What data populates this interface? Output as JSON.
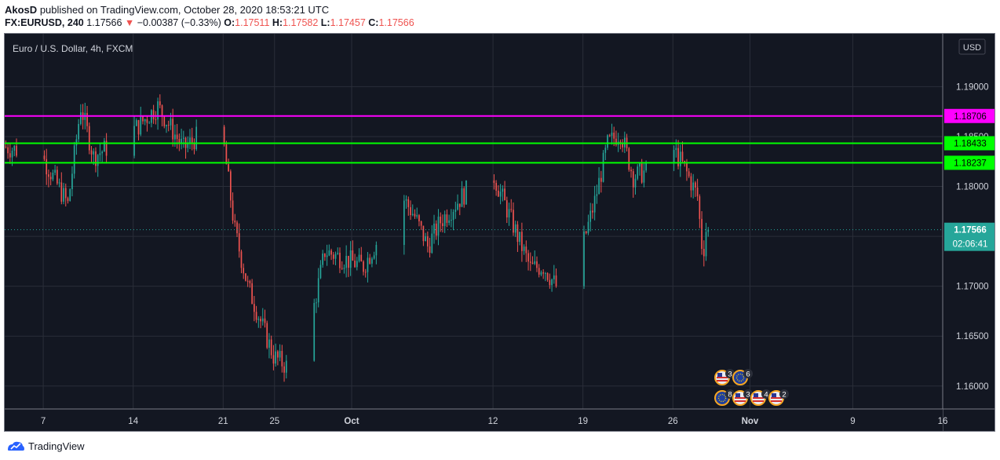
{
  "header": {
    "author": "AkosD",
    "published_text": "published on TradingView.com, October 28, 2020 18:53:21 UTC",
    "symbol": "FX:EURUSD, 240",
    "last": "1.17566",
    "change": "−0.00387 (−0.33%)",
    "o_label": "O:",
    "o_value": "1.17511",
    "h_label": "H:",
    "h_value": "1.17582",
    "l_label": "L:",
    "l_value": "1.17457",
    "c_label": "C:",
    "c_value": "1.17566"
  },
  "legend_title": "Euro / U.S. Dollar, 4h, FXCM",
  "currency_button": "USD",
  "footer_brand": "TradingView",
  "colors": {
    "background": "#131722",
    "up": "#26a69a",
    "down": "#ef5350",
    "magenta": "#ff00ff",
    "green": "#00ff00",
    "grid": "#2a2e39",
    "axis_text": "#d1d4dc"
  },
  "chart_data": {
    "type": "candlestick",
    "title": "Euro / U.S. Dollar, 4h, FXCM",
    "y_ticks": [
      "1.19000",
      "1.18500",
      "1.18000",
      "1.17500",
      "1.17000",
      "1.16500",
      "1.16000"
    ],
    "x_ticks": [
      "7",
      "14",
      "21",
      "25",
      "Oct",
      "12",
      "19",
      "26",
      "Nov",
      "9",
      "16"
    ],
    "ylim": [
      1.1577,
      1.1953
    ],
    "x_range": [
      "2020-09-04",
      "2020-11-16"
    ],
    "grid": true,
    "anchors": [
      {
        "date": "2020-09-04",
        "price": 1.184
      },
      {
        "date": "2020-09-07",
        "price": 1.183
      },
      {
        "date": "2020-09-09",
        "price": 1.1782
      },
      {
        "date": "2020-09-10",
        "price": 1.188
      },
      {
        "date": "2020-09-11",
        "price": 1.183
      },
      {
        "date": "2020-09-14",
        "price": 1.1855
      },
      {
        "date": "2020-09-16",
        "price": 1.188
      },
      {
        "date": "2020-09-18",
        "price": 1.1838
      },
      {
        "date": "2020-09-20",
        "price": 1.186
      },
      {
        "date": "2020-09-21",
        "price": 1.1855
      },
      {
        "date": "2020-09-22",
        "price": 1.1755
      },
      {
        "date": "2020-09-23",
        "price": 1.17
      },
      {
        "date": "2020-09-24",
        "price": 1.1665
      },
      {
        "date": "2020-09-25",
        "price": 1.163
      },
      {
        "date": "2020-09-26",
        "price": 1.162
      },
      {
        "date": "2020-09-28",
        "price": 1.167
      },
      {
        "date": "2020-09-29",
        "price": 1.1735
      },
      {
        "date": "2020-10-01",
        "price": 1.1725
      },
      {
        "date": "2020-10-02",
        "price": 1.172
      },
      {
        "date": "2020-10-05",
        "price": 1.179
      },
      {
        "date": "2020-10-06",
        "price": 1.177
      },
      {
        "date": "2020-10-07",
        "price": 1.174
      },
      {
        "date": "2020-10-08",
        "price": 1.1765
      },
      {
        "date": "2020-10-11",
        "price": 1.181
      },
      {
        "date": "2020-10-12",
        "price": 1.1815
      },
      {
        "date": "2020-10-14",
        "price": 1.175
      },
      {
        "date": "2020-10-15",
        "price": 1.1718
      },
      {
        "date": "2020-10-16",
        "price": 1.172
      },
      {
        "date": "2020-10-17",
        "price": 1.17
      },
      {
        "date": "2020-10-19",
        "price": 1.1738
      },
      {
        "date": "2020-10-20",
        "price": 1.1785
      },
      {
        "date": "2020-10-21",
        "price": 1.1842
      },
      {
        "date": "2020-10-22",
        "price": 1.1855
      },
      {
        "date": "2020-10-23",
        "price": 1.181
      },
      {
        "date": "2020-10-24",
        "price": 1.1815
      },
      {
        "date": "2020-10-26",
        "price": 1.184
      },
      {
        "date": "2020-10-27",
        "price": 1.1818
      },
      {
        "date": "2020-10-28",
        "price": 1.179
      },
      {
        "date": "2020-10-28T10:00",
        "price": 1.173
      },
      {
        "date": "2020-10-28T16:00",
        "price": 1.17566
      }
    ],
    "horizontal_lines": [
      {
        "price": 1.18706,
        "label": "1.18706",
        "color": "#ff00ff"
      },
      {
        "price": 1.18433,
        "label": "1.18433",
        "color": "#00ff00"
      },
      {
        "price": 1.18237,
        "label": "1.18237",
        "color": "#00ff00"
      }
    ],
    "last_price": {
      "price": 1.17566,
      "label": "1.17566",
      "countdown": "02:06:41"
    },
    "events": [
      {
        "flag": "us",
        "count": "3"
      },
      {
        "flag": "eu",
        "count": "6"
      },
      {
        "flag": "eu",
        "count": "8"
      },
      {
        "flag": "us",
        "count": "3"
      },
      {
        "flag": "us",
        "count": "4"
      },
      {
        "flag": "us",
        "count": "2"
      }
    ]
  }
}
